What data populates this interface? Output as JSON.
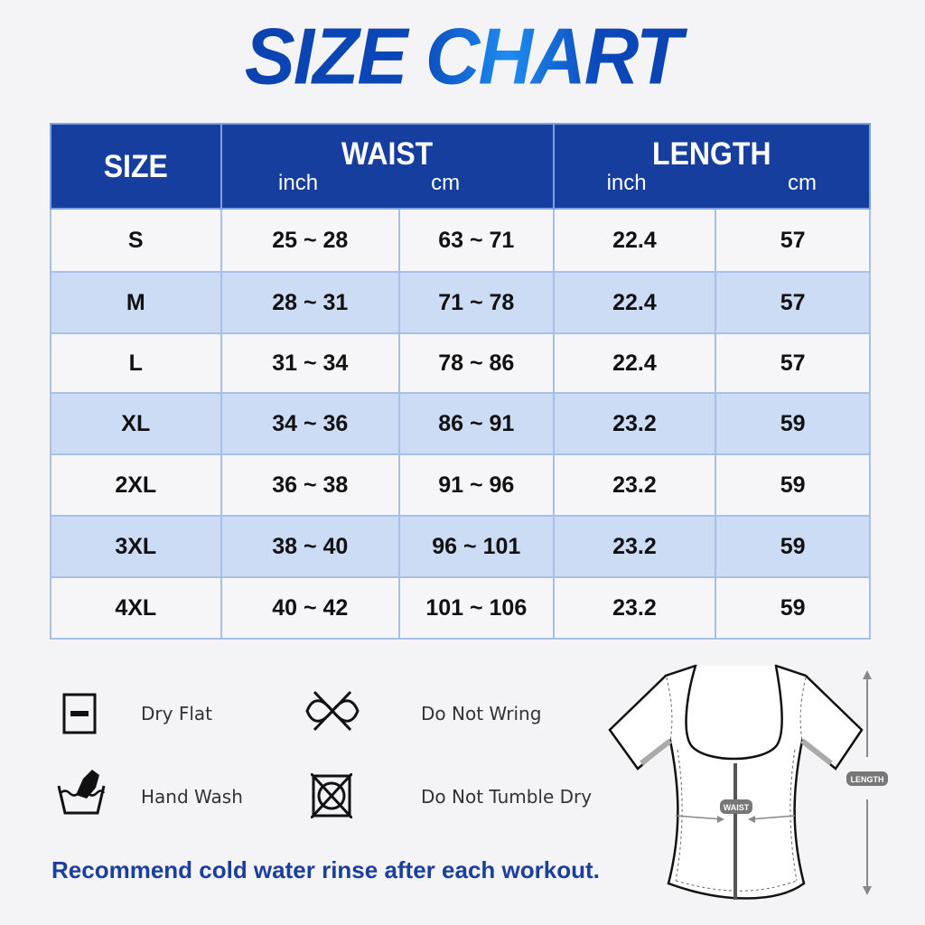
{
  "title": "SIZE CHART",
  "table": {
    "headers": {
      "size": "SIZE",
      "waist": "WAIST",
      "length": "LENGTH",
      "inch": "inch",
      "cm": "cm"
    },
    "rows": [
      {
        "size": "S",
        "waist_inch": "25 ~ 28",
        "waist_cm": "63 ~ 71",
        "length_inch": "22.4",
        "length_cm": "57"
      },
      {
        "size": "M",
        "waist_inch": "28 ~ 31",
        "waist_cm": "71 ~ 78",
        "length_inch": "22.4",
        "length_cm": "57"
      },
      {
        "size": "L",
        "waist_inch": "31 ~ 34",
        "waist_cm": "78 ~ 86",
        "length_inch": "22.4",
        "length_cm": "57"
      },
      {
        "size": "XL",
        "waist_inch": "34 ~ 36",
        "waist_cm": "86 ~ 91",
        "length_inch": "23.2",
        "length_cm": "59"
      },
      {
        "size": "2XL",
        "waist_inch": "36 ~ 38",
        "waist_cm": "91 ~ 96",
        "length_inch": "23.2",
        "length_cm": "59"
      },
      {
        "size": "3XL",
        "waist_inch": "38 ~ 40",
        "waist_cm": "96 ~ 101",
        "length_inch": "23.2",
        "length_cm": "59"
      },
      {
        "size": "4XL",
        "waist_inch": "40 ~ 42",
        "waist_cm": "101 ~ 106",
        "length_inch": "23.2",
        "length_cm": "59"
      }
    ]
  },
  "care": {
    "dry_flat": "Dry Flat",
    "do_not_wring": "Do Not Wring",
    "hand_wash": "Hand Wash",
    "do_not_tumble_dry": "Do Not Tumble Dry"
  },
  "note": "Recommend cold water rinse after each workout.",
  "diagram": {
    "waist": "WAIST",
    "length": "LENGTH"
  },
  "colors": {
    "header": "#163e9f",
    "row_alt": "#cddcf5",
    "note": "#1b3f9c"
  }
}
